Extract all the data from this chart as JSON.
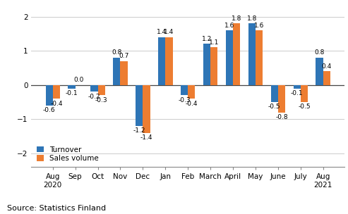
{
  "categories": [
    "Aug\n2020",
    "Sep",
    "Oct",
    "Nov",
    "Dec",
    "Jan",
    "Feb",
    "March",
    "April",
    "May",
    "June",
    "July",
    "Aug\n2021"
  ],
  "turnover": [
    -0.6,
    -0.1,
    -0.2,
    0.8,
    -1.2,
    1.4,
    -0.3,
    1.2,
    1.6,
    1.8,
    -0.5,
    -0.1,
    0.8
  ],
  "sales_volume": [
    -0.4,
    0.0,
    -0.3,
    0.7,
    -1.4,
    1.4,
    -0.4,
    1.1,
    1.8,
    1.6,
    -0.8,
    -0.5,
    0.4
  ],
  "turnover_color": "#2E75B6",
  "sales_color": "#ED7D31",
  "ylim": [
    -2.4,
    2.3
  ],
  "yticks": [
    -2,
    -1,
    0,
    1,
    2
  ],
  "legend_labels": [
    "Turnover",
    "Sales volume"
  ],
  "source_text": "Source: Statistics Finland",
  "bar_width": 0.32,
  "label_fontsize": 6.5,
  "axis_fontsize": 7.5,
  "source_fontsize": 8
}
